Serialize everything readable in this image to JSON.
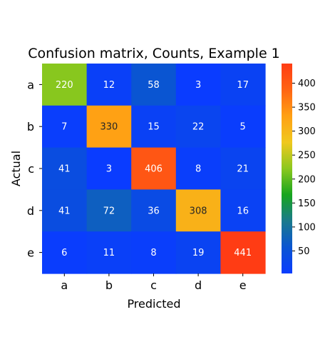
{
  "chart_data": {
    "type": "heatmap",
    "title": "Confusion matrix, Counts, Example 1",
    "xlabel": "Predicted",
    "ylabel": "Actual",
    "x_categories": [
      "a",
      "b",
      "c",
      "d",
      "e"
    ],
    "y_categories": [
      "a",
      "b",
      "c",
      "d",
      "e"
    ],
    "values": [
      [
        220,
        12,
        58,
        3,
        17
      ],
      [
        7,
        330,
        15,
        22,
        5
      ],
      [
        41,
        3,
        406,
        8,
        21
      ],
      [
        41,
        72,
        36,
        308,
        16
      ],
      [
        6,
        11,
        8,
        19,
        441
      ]
    ],
    "color_range": [
      3,
      441
    ],
    "colorbar_ticks": [
      50,
      100,
      150,
      200,
      250,
      300,
      350,
      400
    ],
    "colormap": [
      "#0a3cff",
      "#0a55d2",
      "#1a7a8c",
      "#17a51e",
      "#8cc81e",
      "#f0c81e",
      "#ffa014",
      "#ff6414",
      "#ff3c14"
    ],
    "annotations": true
  }
}
